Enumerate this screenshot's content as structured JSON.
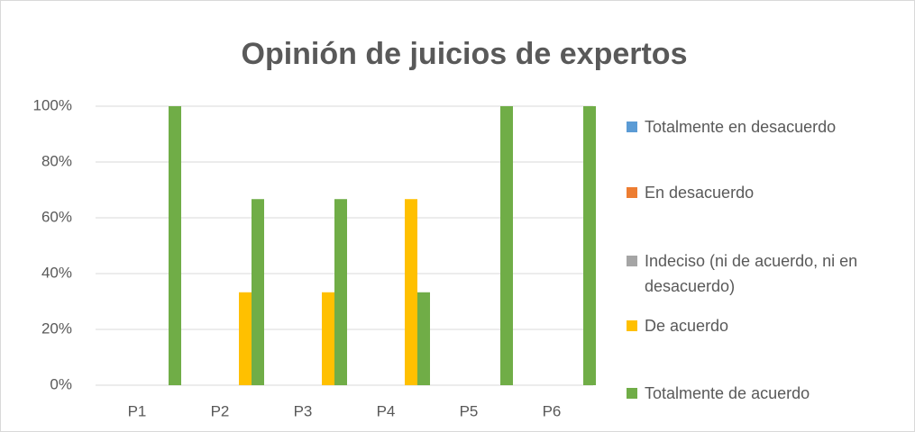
{
  "chart_data": {
    "type": "bar",
    "title": "Opinión de juicios de expertos",
    "categories": [
      "P1",
      "P2",
      "P3",
      "P4",
      "P5",
      "P6"
    ],
    "series": [
      {
        "name": "Totalmente en desacuerdo",
        "color": "#5b9bd5",
        "values": [
          0,
          0,
          0,
          0,
          0,
          0
        ]
      },
      {
        "name": "En desacuerdo",
        "color": "#ed7d31",
        "values": [
          0,
          0,
          0,
          0,
          0,
          0
        ]
      },
      {
        "name": "Indeciso (ni de acuerdo, ni en desacuerdo)",
        "color": "#a5a5a5",
        "values": [
          0,
          0,
          0,
          0,
          0,
          0
        ]
      },
      {
        "name": "De acuerdo",
        "color": "#ffc000",
        "values": [
          0,
          33.3,
          33.3,
          66.7,
          0,
          0
        ]
      },
      {
        "name": "Totalmente de acuerdo",
        "color": "#70ad47",
        "values": [
          100,
          66.7,
          66.7,
          33.3,
          100,
          100
        ]
      }
    ],
    "ylim": [
      0,
      100
    ],
    "yticks": [
      {
        "value": 0,
        "label": "0%"
      },
      {
        "value": 20,
        "label": "20%"
      },
      {
        "value": 40,
        "label": "40%"
      },
      {
        "value": 60,
        "label": "60%"
      },
      {
        "value": 80,
        "label": "80%"
      },
      {
        "value": 100,
        "label": "100%"
      }
    ],
    "grid": true,
    "legend": "right"
  }
}
